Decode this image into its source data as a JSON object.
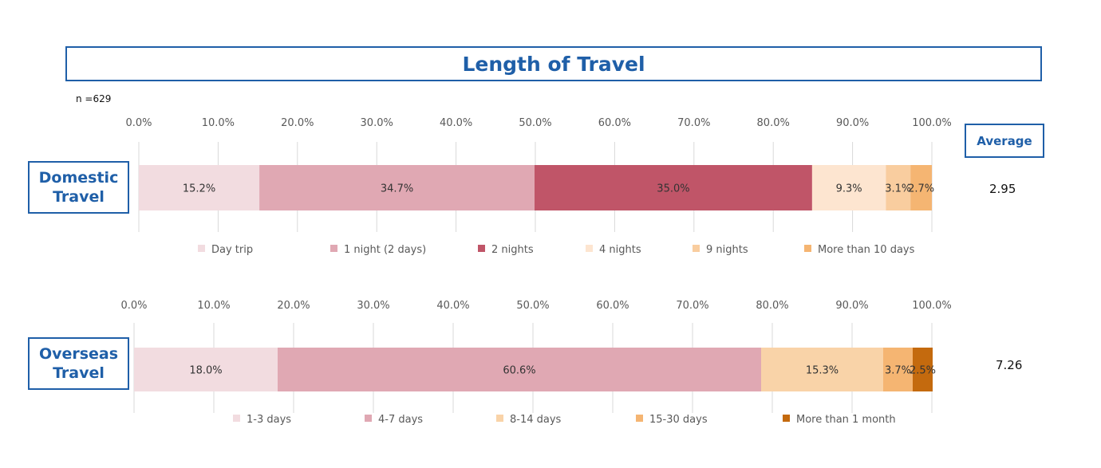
{
  "title": "Length of Travel",
  "n_label": "n =629",
  "average_header": "Average",
  "chart_data": [
    {
      "type": "bar",
      "orientation": "horizontal-stacked",
      "category": "Domestic Travel",
      "category_lines": [
        "Domestic",
        "Travel"
      ],
      "xlim": [
        0,
        100
      ],
      "x_ticks": [
        "0.0%",
        "10.0%",
        "20.0%",
        "30.0%",
        "40.0%",
        "50.0%",
        "60.0%",
        "70.0%",
        "80.0%",
        "90.0%",
        "100.0%"
      ],
      "average": "2.95",
      "legend_position": "bottom",
      "series": [
        {
          "name": "Day trip",
          "value": 15.2,
          "label": "15.2%",
          "color": "#f2dce0"
        },
        {
          "name": "1 night (2 days)",
          "value": 34.7,
          "label": "34.7%",
          "color": "#e0a8b3"
        },
        {
          "name": "2 nights",
          "value": 35.0,
          "label": "35.0%",
          "color": "#c05568"
        },
        {
          "name": "4 nights",
          "value": 9.3,
          "label": "9.3%",
          "color": "#fde5d0"
        },
        {
          "name": "9 nights",
          "value": 3.1,
          "label": "3.1%",
          "color": "#f9cd9f"
        },
        {
          "name": "More than 10 days",
          "value": 2.7,
          "label": "2.7%",
          "color": "#f5b572"
        }
      ]
    },
    {
      "type": "bar",
      "orientation": "horizontal-stacked",
      "category": "Overseas Travel",
      "category_lines": [
        "Overseas",
        "Travel"
      ],
      "xlim": [
        0,
        100
      ],
      "x_ticks": [
        "0.0%",
        "10.0%",
        "20.0%",
        "30.0%",
        "40.0%",
        "50.0%",
        "60.0%",
        "70.0%",
        "80.0%",
        "90.0%",
        "100.0%"
      ],
      "average": "7.26",
      "legend_position": "bottom",
      "series": [
        {
          "name": "1-3 days",
          "value": 18.0,
          "label": "18.0%",
          "color": "#f2dce0"
        },
        {
          "name": "4-7 days",
          "value": 60.6,
          "label": "60.6%",
          "color": "#e0a8b3"
        },
        {
          "name": "8-14 days",
          "value": 15.3,
          "label": "15.3%",
          "color": "#f9d3a8"
        },
        {
          "name": "15-30 days",
          "value": 3.7,
          "label": "3.7%",
          "color": "#f5b572"
        },
        {
          "name": "More than 1 month",
          "value": 2.5,
          "label": "2.5%",
          "color": "#c46a0e"
        }
      ]
    }
  ]
}
